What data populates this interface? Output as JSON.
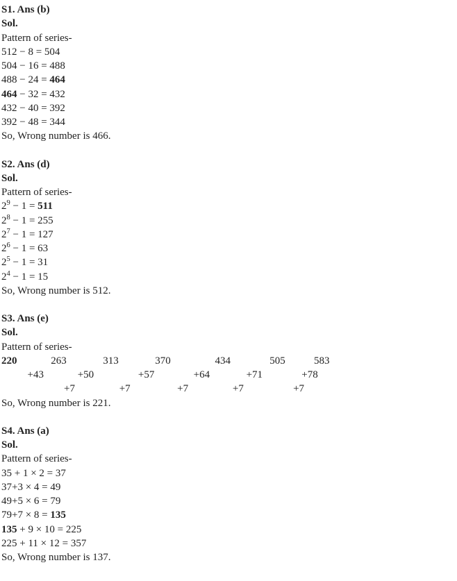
{
  "s1": {
    "title": "S1. Ans (b)",
    "sol": "Sol.",
    "pattern": "Pattern of series-",
    "l1": " 512 − 8 = 504",
    "l2": " 504 − 16 = 488",
    "l3a": " 488 − 24 = ",
    "l3b": "464",
    "l4a": " 464",
    "l4b": " − 32 = 432",
    "l5": " 432 − 40 = 392",
    "l6": " 392 − 48 = 344",
    "ans": "So, Wrong number is 466."
  },
  "s2": {
    "title": "S2. Ans (d)",
    "sol": "Sol.",
    "pattern": "Pattern of series-",
    "p1_base": " 2",
    "p1_exp": "9",
    "p1_rest": " − 1 = ",
    "p1_bold": "511",
    "p2_base": " 2",
    "p2_exp": "8",
    "p2_rest": " − 1 = 255",
    "p3_base": " 2",
    "p3_exp": "7",
    "p3_rest": " − 1 = 127",
    "p4_base": " 2",
    "p4_exp": "6",
    "p4_rest": " − 1 = 63",
    "p5_base": " 2",
    "p5_exp": "5",
    "p5_rest": " − 1 = 31",
    "p6_base": " 2",
    "p6_exp": "4",
    "p6_rest": " − 1 = 15",
    "ans": "So, Wrong number is 512."
  },
  "s3": {
    "title": "S3. Ans (e)",
    "sol": "Sol.",
    "pattern": "Pattern of series-",
    "row1_bold": "220",
    "row1_rest": "             263              313              370                 434               505           583",
    "row2": "          +43             +50                 +57               +64              +71               +78",
    "row3": "                        +7                 +7                  +7                 +7                   +7",
    "ans": "So, Wrong number is 221."
  },
  "s4": {
    "title": "S4. Ans (a)",
    "sol": "Sol.",
    "pattern": "Pattern of series-",
    "l1": " 35 + 1 × 2 = 37",
    "l2": "  37+3 × 4 = 49",
    "l3": "  49+5 × 6 = 79",
    "l4a": "  79+7 × 8 = ",
    "l4b": "135",
    "l5a": "  135",
    "l5b": " + 9 × 10 = 225",
    "l6": "  225 + 11 × 12 = 357",
    "ans": " So, Wrong number is 137."
  }
}
